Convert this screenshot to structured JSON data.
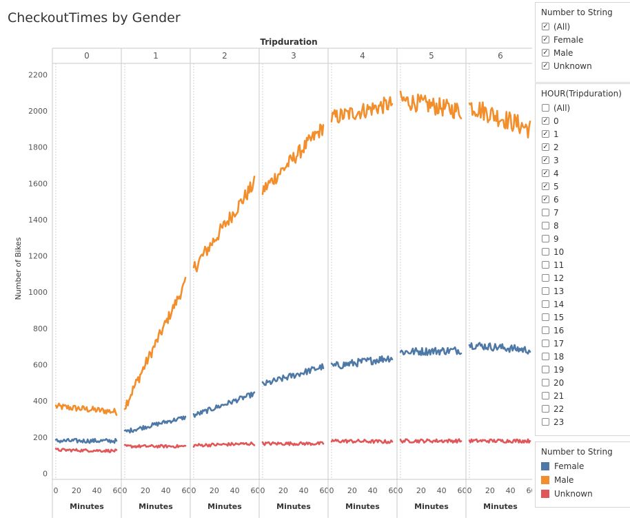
{
  "title": "CheckoutTimes by Gender",
  "chart_data": {
    "type": "line",
    "column_header": "Tripduration",
    "panels": [
      "0",
      "1",
      "2",
      "3",
      "4",
      "5",
      "6"
    ],
    "ylabel": "Number of Bikes",
    "xlabel": "Minutes",
    "ylim": [
      0,
      2250
    ],
    "yticks": [
      0,
      200,
      400,
      600,
      800,
      1000,
      1200,
      1400,
      1600,
      1800,
      2000,
      2200
    ],
    "xlim": [
      0,
      59
    ],
    "xticks": [
      0,
      20,
      40,
      60
    ],
    "grid": false,
    "series": [
      {
        "name": "Male",
        "color": "#f28e2b",
        "start": [
          370,
          370,
          1130,
          1560,
          1960,
          2060,
          2030
        ],
        "end": [
          340,
          1050,
          1600,
          1910,
          2040,
          2000,
          1900
        ],
        "noise": [
          18,
          30,
          40,
          40,
          45,
          50,
          55
        ]
      },
      {
        "name": "Female",
        "color": "#4e79a7",
        "start": [
          180,
          230,
          320,
          490,
          590,
          670,
          710
        ],
        "end": [
          180,
          310,
          440,
          590,
          640,
          680,
          680
        ],
        "noise": [
          12,
          12,
          14,
          18,
          22,
          22,
          22
        ]
      },
      {
        "name": "Unknown",
        "color": "#e15759",
        "start": [
          130,
          150,
          155,
          165,
          180,
          180,
          180
        ],
        "end": [
          125,
          150,
          165,
          165,
          175,
          180,
          180
        ],
        "noise": [
          8,
          8,
          9,
          9,
          10,
          10,
          10
        ]
      }
    ]
  },
  "filters": {
    "number_to_string": {
      "title": "Number to String",
      "items": [
        {
          "label": "(All)",
          "checked": true
        },
        {
          "label": "Female",
          "checked": true
        },
        {
          "label": "Male",
          "checked": true
        },
        {
          "label": "Unknown",
          "checked": true
        }
      ]
    },
    "hour": {
      "title": "HOUR(Tripduration)",
      "items": [
        {
          "label": "(All)",
          "checked": false
        },
        {
          "label": "0",
          "checked": true
        },
        {
          "label": "1",
          "checked": true
        },
        {
          "label": "2",
          "checked": true
        },
        {
          "label": "3",
          "checked": true
        },
        {
          "label": "4",
          "checked": true
        },
        {
          "label": "5",
          "checked": true
        },
        {
          "label": "6",
          "checked": true
        },
        {
          "label": "7",
          "checked": false
        },
        {
          "label": "8",
          "checked": false
        },
        {
          "label": "9",
          "checked": false
        },
        {
          "label": "10",
          "checked": false
        },
        {
          "label": "11",
          "checked": false
        },
        {
          "label": "12",
          "checked": false
        },
        {
          "label": "13",
          "checked": false
        },
        {
          "label": "14",
          "checked": false
        },
        {
          "label": "15",
          "checked": false
        },
        {
          "label": "16",
          "checked": false
        },
        {
          "label": "17",
          "checked": false
        },
        {
          "label": "18",
          "checked": false
        },
        {
          "label": "19",
          "checked": false
        },
        {
          "label": "20",
          "checked": false
        },
        {
          "label": "21",
          "checked": false
        },
        {
          "label": "22",
          "checked": false
        },
        {
          "label": "23",
          "checked": false
        }
      ]
    }
  },
  "legend": {
    "title": "Number to String",
    "items": [
      {
        "label": "Female",
        "color": "#4e79a7"
      },
      {
        "label": "Male",
        "color": "#f28e2b"
      },
      {
        "label": "Unknown",
        "color": "#e15759"
      }
    ]
  }
}
